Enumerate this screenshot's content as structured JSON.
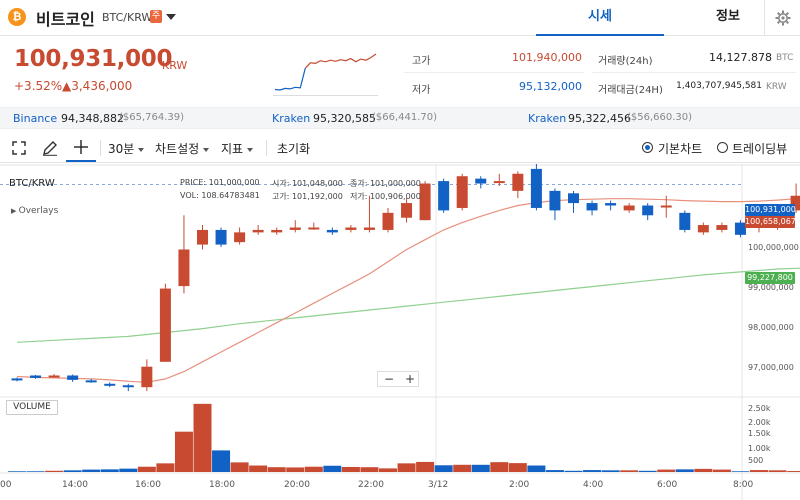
{
  "header": {
    "coin_icon_glyph": "₿",
    "coin_name": "비트코인",
    "pair": "BTC/KRW",
    "caution_badge": "주",
    "tabs": [
      {
        "label": "시세",
        "active": true
      },
      {
        "label": "정보",
        "active": false
      }
    ],
    "settings_icon": "gear-icon"
  },
  "summary": {
    "price": "100,931,000",
    "unit": "KRW",
    "change_rate": "+3.52%",
    "change_amount": "▲3,436,000",
    "high_label": "고가",
    "high_value": "101,940,000",
    "low_label": "저가",
    "low_value": "95,132,000",
    "volume_label": "거래량(24h)",
    "volume_value": "14,127.878",
    "volume_unit": "BTC",
    "trade_value_label": "거래대금(24H)",
    "trade_value": "1,403,707,945,581",
    "trade_value_unit": "KRW"
  },
  "exchanges": [
    {
      "name": "Binance",
      "price": "94,348,882",
      "sub": "($65,764.39)"
    },
    {
      "name": "Kraken",
      "price": "95,320,585",
      "sub": "($66,441.70)"
    },
    {
      "name": "Kraken",
      "price": "95,322,456",
      "sub": "($56,660.30)"
    }
  ],
  "toolbar": {
    "interval": "30분",
    "chart_settings": "차트설정",
    "indicators": "지표",
    "reset": "초기화",
    "basic_chart": "기본차트",
    "trading_view": "트레이딩뷰"
  },
  "chart": {
    "pair_label": "BTC/KRW",
    "overlays_label": "Overlays",
    "volume_label": "VOLUME",
    "zoom_out": "−",
    "zoom_in": "+",
    "ohlc": {
      "price_label": "PRICE:",
      "price": "101,000,000",
      "open_label": "시가:",
      "open": "101,048,000",
      "close_label": "종가:",
      "close": "101,000,000",
      "vol_label": "VOL:",
      "vol": "108.64783481",
      "high_label": "고가:",
      "high": "101,192,000",
      "low_label": "저가:",
      "low": "100,906,000"
    },
    "tags": {
      "last": "100,931,000",
      "ma_short": "100,658,067",
      "ma_long": "99,227,800"
    },
    "y_ticks": [
      "100,000,000",
      "99,000,000",
      "98,000,000",
      "97,000,000"
    ],
    "vol_ticks": [
      "2.50k",
      "2.00k",
      "1.50k",
      "1.00k",
      "500"
    ],
    "x_ticks": [
      "00",
      "14:00",
      "16:00",
      "18:00",
      "20:00",
      "22:00",
      "3/12",
      "2:00",
      "4:00",
      "6:00",
      "8:00"
    ],
    "colors": {
      "up": "#c84a31",
      "down": "#1261c4",
      "ma_short": "#e8907e",
      "ma_long": "#8fd18f",
      "last_tag": "#1261c4",
      "ma_short_tag": "#c84a31",
      "ma_long_tag": "#4caf50"
    }
  },
  "chart_data": {
    "type": "candlestick",
    "y_range": [
      96600000,
      101350000
    ],
    "candles": [
      [
        96960000,
        96950000,
        96980000,
        96900000
      ],
      [
        97020000,
        96970000,
        97030000,
        96950000
      ],
      [
        97000000,
        97020000,
        97050000,
        96980000
      ],
      [
        97020000,
        96930000,
        97040000,
        96890000
      ],
      [
        96920000,
        96900000,
        96950000,
        96870000
      ],
      [
        96850000,
        96820000,
        96880000,
        96780000
      ],
      [
        96820000,
        96780000,
        96850000,
        96700000
      ],
      [
        96780000,
        97200000,
        97350000,
        96700000
      ],
      [
        97300000,
        98800000,
        98900000,
        97300000
      ],
      [
        98850000,
        99600000,
        100300000,
        98700000
      ],
      [
        99700000,
        100000000,
        100100000,
        99600000
      ],
      [
        100000000,
        99700000,
        100050000,
        99650000
      ],
      [
        99750000,
        99950000,
        100050000,
        99700000
      ],
      [
        99950000,
        100000000,
        100100000,
        99900000
      ],
      [
        99950000,
        100000000,
        100050000,
        99900000
      ],
      [
        100000000,
        100050000,
        100200000,
        99950000
      ],
      [
        100050000,
        100050000,
        100150000,
        100000000
      ],
      [
        100000000,
        99950000,
        100050000,
        99900000
      ],
      [
        100000000,
        100050000,
        100100000,
        99950000
      ],
      [
        100000000,
        100050000,
        100700000,
        99950000
      ],
      [
        100000000,
        100350000,
        100450000,
        99950000
      ],
      [
        100250000,
        100550000,
        100650000,
        100150000
      ],
      [
        100200000,
        100950000,
        101000000,
        100200000
      ],
      [
        101000000,
        100400000,
        101050000,
        100350000
      ],
      [
        100450000,
        101100000,
        101150000,
        100400000
      ],
      [
        101050000,
        100950000,
        101100000,
        100850000
      ],
      [
        101000000,
        101000000,
        101150000,
        100900000
      ],
      [
        100800000,
        101150000,
        101200000,
        100650000
      ],
      [
        101250000,
        100450000,
        101400000,
        100400000
      ],
      [
        100800000,
        100400000,
        100850000,
        100200000
      ],
      [
        100750000,
        100550000,
        100800000,
        100350000
      ],
      [
        100550000,
        100400000,
        100600000,
        100300000
      ],
      [
        100550000,
        100500000,
        100600000,
        100400000
      ],
      [
        100400000,
        100500000,
        100550000,
        100350000
      ],
      [
        100500000,
        100300000,
        100550000,
        100200000
      ],
      [
        100500000,
        100500000,
        100700000,
        100250000
      ],
      [
        100350000,
        100000000,
        100400000,
        99950000
      ],
      [
        99950000,
        100100000,
        100150000,
        99900000
      ],
      [
        100000000,
        100100000,
        100150000,
        99950000
      ],
      [
        100150000,
        99900000,
        100200000,
        99850000
      ],
      [
        100100000,
        100100000,
        100150000,
        99950000
      ],
      [
        100100000,
        100400000,
        100450000,
        100000000
      ],
      [
        100400000,
        100700000,
        100950000,
        100350000
      ],
      [
        100900000,
        100931000,
        100950000,
        100880000
      ]
    ],
    "volumes": [
      0.03,
      0.03,
      0.05,
      0.07,
      0.1,
      0.11,
      0.14,
      0.22,
      0.36,
      1.68,
      2.84,
      0.9,
      0.4,
      0.27,
      0.2,
      0.19,
      0.22,
      0.26,
      0.21,
      0.2,
      0.15,
      0.36,
      0.42,
      0.28,
      0.3,
      0.3,
      0.41,
      0.37,
      0.27,
      0.08,
      0.05,
      0.08,
      0.07,
      0.07,
      0.05,
      0.1,
      0.11,
      0.13,
      0.1,
      0.03,
      0.08,
      0.07,
      0.04,
      0.06
    ],
    "ma_short": [
      97000000,
      96980000,
      96970000,
      96960000,
      96950000,
      96930000,
      96900000,
      96880000,
      96950000,
      97100000,
      97300000,
      97500000,
      97700000,
      97900000,
      98100000,
      98300000,
      98500000,
      98700000,
      98900000,
      99100000,
      99350000,
      99600000,
      99800000,
      100000000,
      100150000,
      100280000,
      100400000,
      100500000,
      100560000,
      100600000,
      100620000,
      100630000,
      100640000,
      100640000,
      100630000,
      100620000,
      100600000,
      100590000,
      100580000,
      100580000,
      100590000,
      100610000,
      100640000,
      100658067
    ],
    "ma_long": [
      97700000,
      97720000,
      97740000,
      97760000,
      97780000,
      97800000,
      97820000,
      97860000,
      97900000,
      97940000,
      97980000,
      98030000,
      98080000,
      98120000,
      98160000,
      98200000,
      98240000,
      98280000,
      98320000,
      98360000,
      98400000,
      98440000,
      98480000,
      98520000,
      98560000,
      98600000,
      98640000,
      98680000,
      98720000,
      98760000,
      98800000,
      98840000,
      98880000,
      98920000,
      98960000,
      99000000,
      99040000,
      99080000,
      99110000,
      99140000,
      99170000,
      99200000,
      99215000,
      99227800
    ],
    "last_price": 100931000,
    "mini_chart": [
      97600000,
      97550000,
      97700000,
      97650000,
      97800000,
      97750000,
      99600000,
      100100000,
      100050000,
      100300000,
      100200000,
      100350000,
      100250000,
      100400000,
      100300000,
      100500000,
      100200000,
      100450000,
      100350000,
      100600000,
      100931000
    ]
  }
}
